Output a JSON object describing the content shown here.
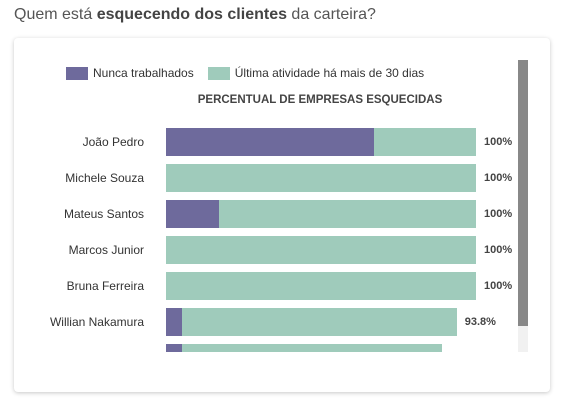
{
  "heading": {
    "prefix": "Quem está ",
    "emphasis": "esquecendo dos clientes",
    "suffix": " da carteira?"
  },
  "colors": {
    "never_worked": "#6e6a9c",
    "last_activity": "#9fcbbb"
  },
  "chart_data": {
    "type": "bar",
    "orientation": "horizontal",
    "stacked": true,
    "title": "PERCENTUAL DE EMPRESAS ESQUECIDAS",
    "legend_position": "top",
    "categories": [
      "João Pedro",
      "Michele Souza",
      "Mateus Santos",
      "Marcos Junior",
      "Bruna Ferreira",
      "Willian Nakamura",
      ""
    ],
    "series": [
      {
        "name": "Nunca trabalhados",
        "values": [
          67,
          0,
          17,
          0,
          0,
          5,
          5
        ]
      },
      {
        "name": "Última atividade há mais de 30 dias",
        "values": [
          33,
          100,
          83,
          100,
          100,
          88.8,
          84
        ]
      }
    ],
    "totals_labels": [
      "100%",
      "100%",
      "100%",
      "100%",
      "100%",
      "93.8%",
      ""
    ],
    "xlim": [
      0,
      100
    ],
    "grid": false
  }
}
